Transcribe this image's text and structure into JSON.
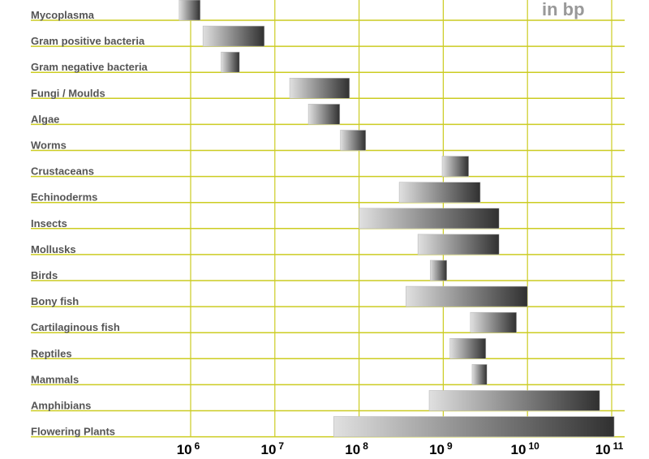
{
  "chart_data": {
    "type": "bar",
    "orientation": "horizontal-range",
    "title": "",
    "unit_label": "in bp",
    "x_scale": "log",
    "xlim": [
      100000.0,
      100000000000.0
    ],
    "x_ticks": [
      {
        "base": "10",
        "exp": "6",
        "value": 1000000.0
      },
      {
        "base": "10",
        "exp": "7",
        "value": 10000000.0
      },
      {
        "base": "10",
        "exp": "8",
        "value": 100000000.0
      },
      {
        "base": "10",
        "exp": "9",
        "value": 1000000000.0
      },
      {
        "base": "10",
        "exp": "10",
        "value": 10000000000.0
      },
      {
        "base": "10",
        "exp": "11",
        "value": 100000000000.0
      }
    ],
    "grid": true,
    "grid_color": "#cccc22",
    "bar_gradient": [
      "#e0e0e0",
      "#303030"
    ],
    "categories": [
      "Mycoplasma",
      "Gram positive bacteria",
      "Gram negative bacteria",
      "Fungi / Moulds",
      "Algae",
      "Worms",
      "Crustaceans",
      "Echinoderms",
      "Insects",
      "Mollusks",
      "Birds",
      "Bony fish",
      "Cartilaginous fish",
      "Reptiles",
      "Mammals",
      "Amphibians",
      "Flowering Plants"
    ],
    "ranges": [
      [
        730000.0,
        1300000.0
      ],
      [
        1400000.0,
        7500000.0
      ],
      [
        2300000.0,
        3800000.0
      ],
      [
        15000000.0,
        77000000.0
      ],
      [
        25000000.0,
        59000000.0
      ],
      [
        60000000.0,
        120000000.0
      ],
      [
        970000000.0,
        2000000000.0
      ],
      [
        300000000.0,
        2750000000.0
      ],
      [
        100000000.0,
        4600000000.0
      ],
      [
        500000000.0,
        4600000000.0
      ],
      [
        700000000.0,
        1100000000.0
      ],
      [
        360000000.0,
        10000000000.0
      ],
      [
        2100000000.0,
        7400000000.0
      ],
      [
        1200000000.0,
        3200000000.0
      ],
      [
        2200000000.0,
        3300000000.0
      ],
      [
        680000000.0,
        72000000000.0
      ],
      [
        50000000.0,
        107000000000.0
      ]
    ]
  }
}
